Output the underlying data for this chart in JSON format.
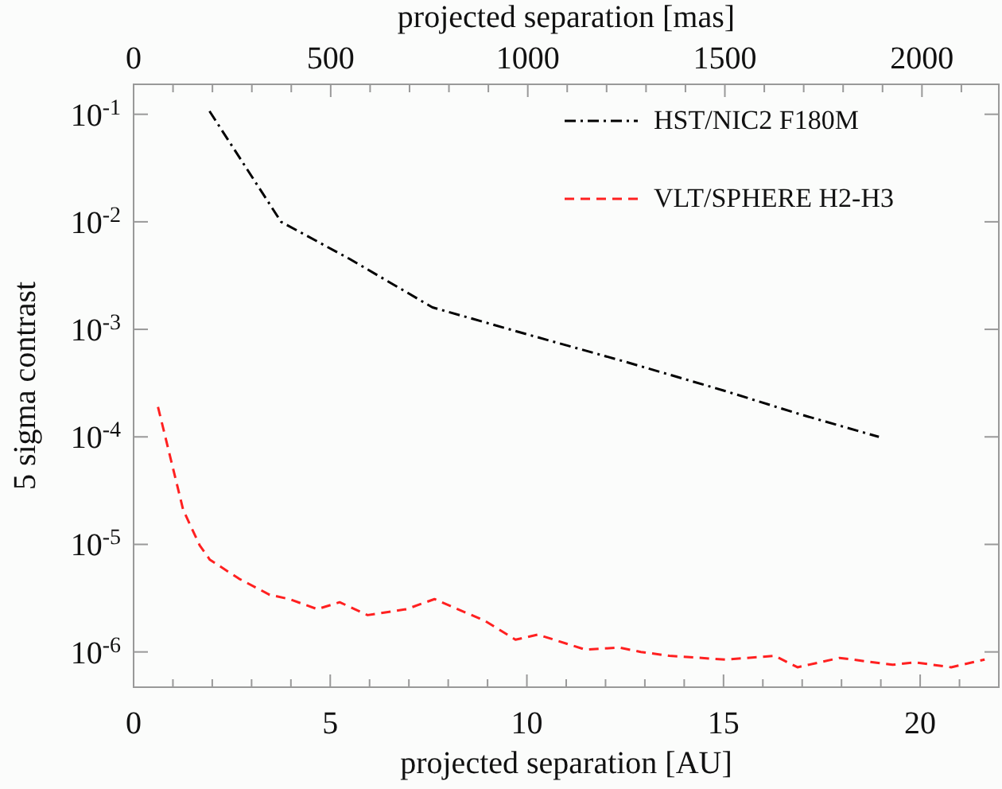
{
  "chart_data": {
    "type": "line",
    "xlabel": "projected separation [AU]",
    "x2label": "projected separation [mas]",
    "ylabel": "5 sigma contrast",
    "log": "y",
    "xlim": [
      0,
      22
    ],
    "xticks": [
      0,
      {
        "value": 1,
        "label": null
      },
      {
        "value": 2,
        "label": null
      },
      {
        "value": 3,
        "label": null
      },
      {
        "value": 4,
        "label": null
      },
      5,
      {
        "value": 6,
        "label": null
      },
      {
        "value": 7,
        "label": null
      },
      {
        "value": 8,
        "label": null
      },
      {
        "value": 9,
        "label": null
      },
      10,
      {
        "value": 11,
        "label": null
      },
      {
        "value": 12,
        "label": null
      },
      {
        "value": 13,
        "label": null
      },
      {
        "value": 14,
        "label": null
      },
      15,
      {
        "value": 16,
        "label": null
      },
      {
        "value": 17,
        "label": null
      },
      {
        "value": 18,
        "label": null
      },
      {
        "value": 19,
        "label": null
      },
      20,
      {
        "value": 21,
        "label": null
      }
    ],
    "x2lim": [
      0,
      2195
    ],
    "x2ticks": [
      0,
      {
        "value": 100,
        "label": null
      },
      {
        "value": 200,
        "label": null
      },
      {
        "value": 300,
        "label": null
      },
      {
        "value": 400,
        "label": null
      },
      500,
      {
        "value": 600,
        "label": null
      },
      {
        "value": 700,
        "label": null
      },
      {
        "value": 800,
        "label": null
      },
      {
        "value": 900,
        "label": null
      },
      1000,
      {
        "value": 1100,
        "label": null
      },
      {
        "value": 1200,
        "label": null
      },
      {
        "value": 1300,
        "label": null
      },
      {
        "value": 1400,
        "label": null
      },
      1500,
      {
        "value": 1600,
        "label": null
      },
      {
        "value": 1700,
        "label": null
      },
      {
        "value": 1800,
        "label": null
      },
      {
        "value": 1900,
        "label": null
      },
      2000,
      {
        "value": 2100,
        "label": null
      }
    ],
    "ylim": [
      4.7e-07,
      0.19
    ],
    "yticks": [
      {
        "value": 0.1,
        "label": "10$^{-1}$"
      },
      {
        "value": 0.01,
        "label": "10$^{-2}$"
      },
      {
        "value": 0.001,
        "label": "10$^{-3}$"
      },
      {
        "value": 0.0001,
        "label": "10$^{-4}$"
      },
      {
        "value": 1e-05,
        "label": "10$^{-5}$"
      },
      {
        "value": 1e-06,
        "label": "10$^{-6}$"
      }
    ],
    "grid": false,
    "legend": "top right",
    "marker": "none",
    "series": [
      {
        "name": "HST/NIC2 F180M",
        "color": "#000000",
        "line_style": "dashdot",
        "x": [
          1.93,
          3.75,
          5.5,
          7.6,
          10,
          12.5,
          15,
          17,
          18.95
        ],
        "values": [
          0.107,
          0.01,
          0.0045,
          0.0016,
          0.0009,
          0.0005,
          0.00027,
          0.00016,
          0.0001
        ]
      },
      {
        "name": "VLT/SPHERE H2-H3",
        "color": "#ff2020",
        "line_style": "dashed",
        "x": [
          0.62,
          1.26,
          1.68,
          1.94,
          2.68,
          3.46,
          3.96,
          4.67,
          5.24,
          5.95,
          6.94,
          7.65,
          8.93,
          9.71,
          10.28,
          11.49,
          12.34,
          12.9,
          13.62,
          15.04,
          16.3,
          16.88,
          17.95,
          19.3,
          19.87,
          20.79,
          21.64
        ],
        "values": [
          0.00019,
          2.1e-05,
          9.8e-06,
          7.2e-06,
          4.8e-06,
          3.4e-06,
          3.1e-06,
          2.5e-06,
          2.9e-06,
          2.2e-06,
          2.5e-06,
          3.1e-06,
          1.95e-06,
          1.3e-06,
          1.45e-06,
          1.05e-06,
          1.1e-06,
          1e-06,
          9.2e-07,
          8.5e-07,
          9.2e-07,
          7.2e-07,
          8.8e-07,
          7.6e-07,
          8e-07,
          7.2e-07,
          8.5e-07
        ]
      }
    ]
  }
}
